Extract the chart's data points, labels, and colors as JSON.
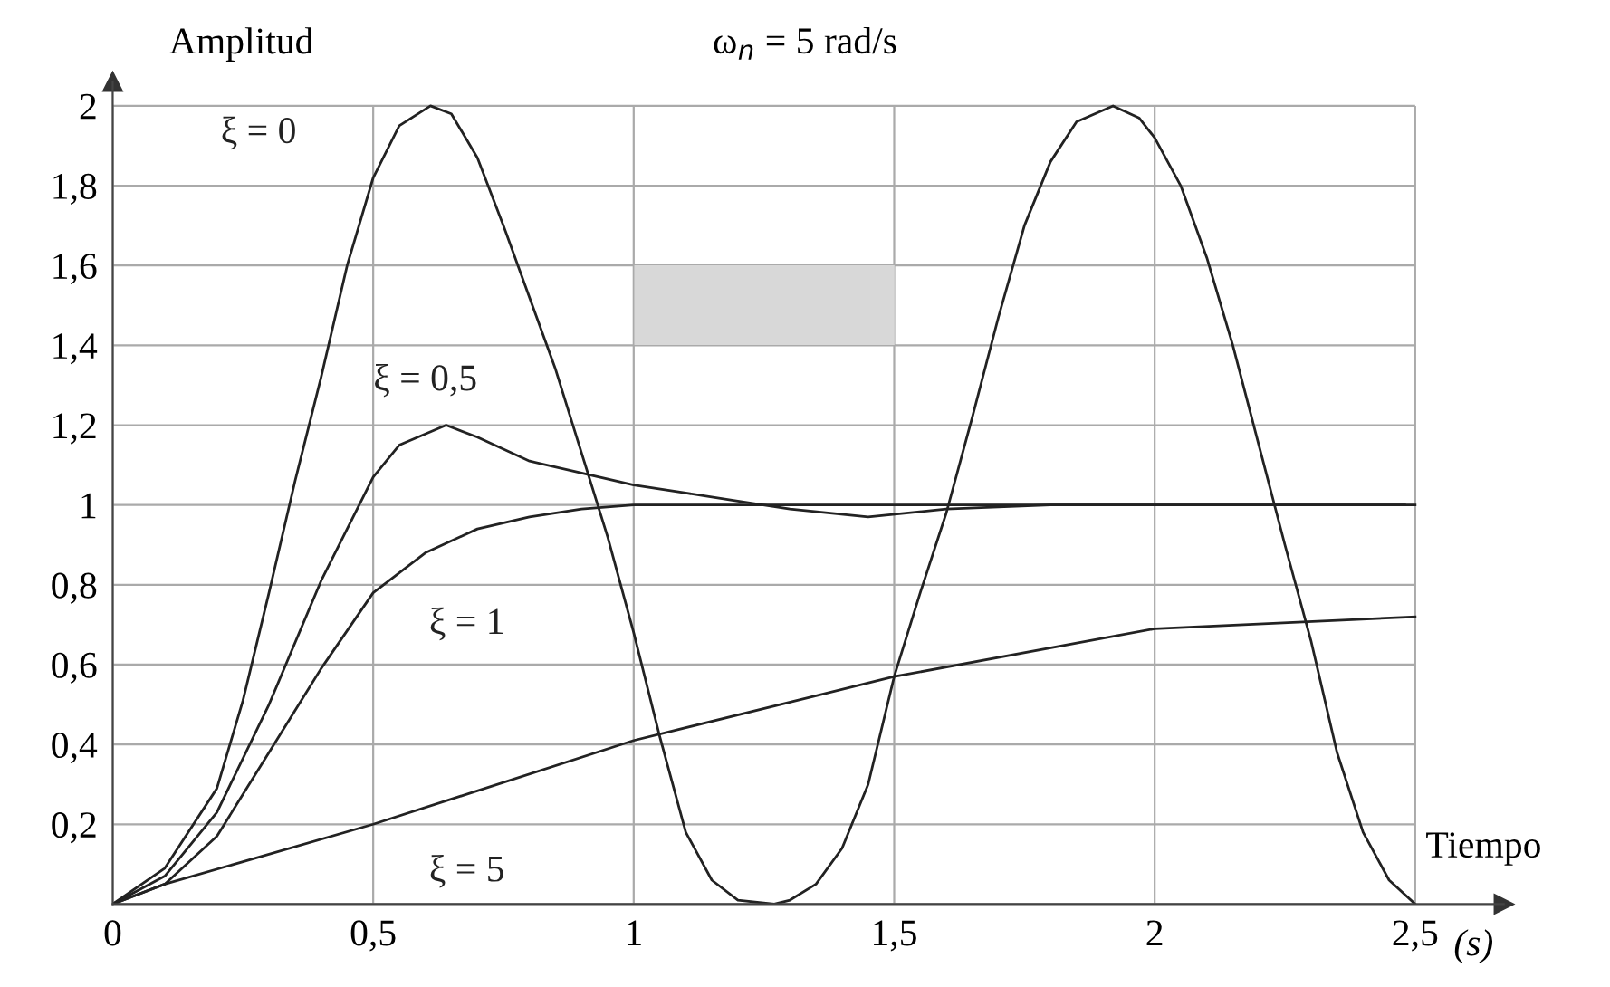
{
  "chart_data": {
    "type": "line",
    "title": "ω$_{n}$ = 5 rad/s",
    "ylabel": "Amplitud",
    "xlabel": "Tiempo",
    "annotations": [
      "(s)"
    ],
    "series": [
      {
        "name": "ξ = 0",
        "color": "#222222",
        "x": [
          0,
          0.1,
          0.2,
          0.25,
          0.3,
          0.35,
          0.4,
          0.45,
          0.5,
          0.55,
          0.61,
          0.65,
          0.7,
          0.75,
          0.8,
          0.85,
          0.9,
          0.95,
          1.0,
          1.05,
          1.1,
          1.15,
          1.2,
          1.27,
          1.3,
          1.35,
          1.4,
          1.45,
          1.5,
          1.55,
          1.6,
          1.65,
          1.7,
          1.75,
          1.8,
          1.85,
          1.92,
          1.97,
          2.0,
          2.05,
          2.1,
          2.15,
          2.2,
          2.25,
          2.3,
          2.35,
          2.4,
          2.45,
          2.5
        ],
        "values": [
          0,
          0.09,
          0.29,
          0.51,
          0.78,
          1.06,
          1.32,
          1.6,
          1.82,
          1.95,
          2.0,
          1.98,
          1.87,
          1.7,
          1.52,
          1.34,
          1.13,
          0.92,
          0.68,
          0.42,
          0.18,
          0.06,
          0.01,
          0,
          0.01,
          0.05,
          0.14,
          0.3,
          0.57,
          0.78,
          0.98,
          1.22,
          1.47,
          1.7,
          1.86,
          1.96,
          2.0,
          1.97,
          1.92,
          1.8,
          1.62,
          1.4,
          1.15,
          0.9,
          0.66,
          0.38,
          0.18,
          0.06,
          0
        ]
      },
      {
        "name": "ξ = 0,5",
        "color": "#222222",
        "x": [
          0,
          0.1,
          0.2,
          0.3,
          0.4,
          0.5,
          0.55,
          0.64,
          0.7,
          0.8,
          0.9,
          1.0,
          1.1,
          1.2,
          1.3,
          1.45,
          1.6,
          1.8,
          2.0,
          2.5
        ],
        "values": [
          0,
          0.07,
          0.23,
          0.5,
          0.81,
          1.07,
          1.15,
          1.2,
          1.17,
          1.11,
          1.08,
          1.05,
          1.03,
          1.01,
          0.99,
          0.97,
          0.99,
          1.0,
          1.0,
          1.0
        ]
      },
      {
        "name": "ξ = 1",
        "color": "#222222",
        "x": [
          0,
          0.1,
          0.2,
          0.3,
          0.4,
          0.5,
          0.6,
          0.7,
          0.8,
          0.9,
          1.0,
          1.2,
          2.48
        ],
        "values": [
          0,
          0.05,
          0.17,
          0.38,
          0.59,
          0.78,
          0.88,
          0.94,
          0.97,
          0.99,
          1.0,
          1.0,
          1.0
        ]
      },
      {
        "name": "ξ = 5",
        "color": "#222222",
        "x": [
          0,
          0.1,
          0.5,
          1.0,
          1.5,
          2.0,
          2.5
        ],
        "values": [
          0,
          0.05,
          0.2,
          0.41,
          0.57,
          0.69,
          0.72
        ]
      }
    ],
    "xlim": [
      0,
      2.67
    ],
    "ylim": [
      0,
      2.06
    ],
    "xticks": [
      0,
      {
        "value": 0.5,
        "label": "0,5"
      },
      1,
      {
        "value": 1.5,
        "label": "1,5"
      },
      2,
      {
        "value": 2.5,
        "label": "2,5"
      }
    ],
    "yticks": [
      {
        "value": 0,
        "label": null
      },
      {
        "value": 0.2,
        "label": "0,2"
      },
      {
        "value": 0.4,
        "label": "0,4"
      },
      {
        "value": 0.6,
        "label": "0,6"
      },
      {
        "value": 0.8,
        "label": "0,8"
      },
      1,
      {
        "value": 1.2,
        "label": "1,2"
      },
      {
        "value": 1.4,
        "label": "1,4"
      },
      {
        "value": 1.6,
        "label": "1,6"
      },
      {
        "value": 1.8,
        "label": "1,8"
      },
      2
    ],
    "grid": true,
    "legend": false,
    "marker": "none",
    "line_style": "solid"
  }
}
